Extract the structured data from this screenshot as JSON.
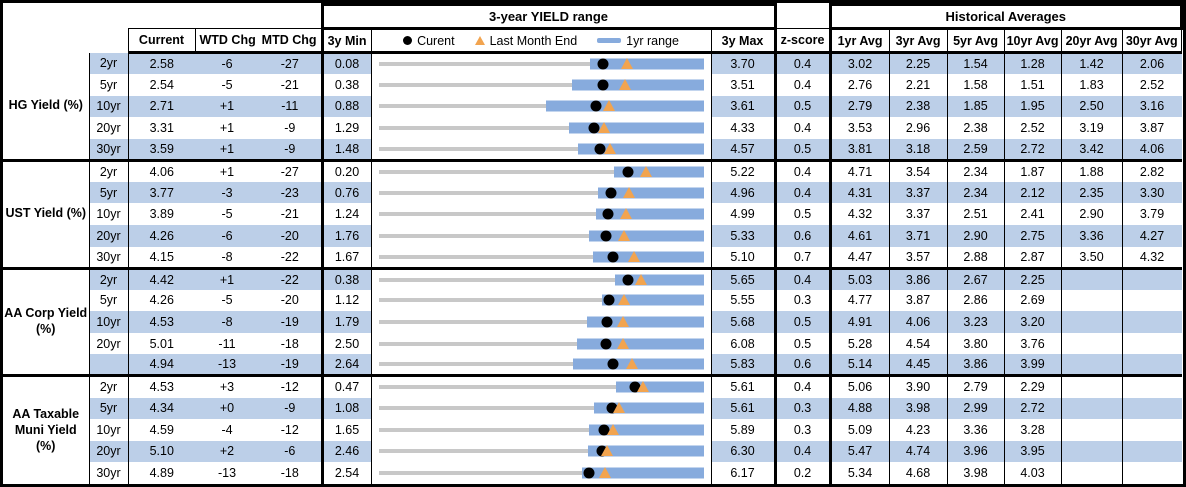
{
  "sections": {
    "yield_range": "3-year YIELD range",
    "historical": "Historical Averages"
  },
  "columns": {
    "current": "Current",
    "wtd": "WTD Chg",
    "mtd": "MTD Chg",
    "min": "3y Min",
    "max": "3y Max",
    "z": "z-score",
    "avgs": [
      "1yr Avg",
      "3yr Avg",
      "5yr Avg",
      "10yr Avg",
      "20yr Avg",
      "30yr Avg"
    ]
  },
  "legend": {
    "current": "Curent",
    "last_month_end": "Last Month End",
    "range": "1yr range"
  },
  "colors": {
    "band": "#BCCFE8",
    "bar": "#87ABDD",
    "triangle": "#F2A44F",
    "track": "#C8C8C8",
    "marker": "#000000"
  },
  "groups": [
    {
      "label": "HG Yield (%)",
      "rows": [
        {
          "tenor": "2yr",
          "current": "2.58",
          "wtd": "-6",
          "mtd": "-27",
          "min": "0.08",
          "max": "3.70",
          "z": "0.4",
          "avgs": [
            "3.02",
            "2.25",
            "1.54",
            "1.28",
            "1.42",
            "2.06"
          ]
        },
        {
          "tenor": "5yr",
          "current": "2.54",
          "wtd": "-5",
          "mtd": "-21",
          "min": "0.38",
          "max": "3.51",
          "z": "0.4",
          "avgs": [
            "2.76",
            "2.21",
            "1.58",
            "1.51",
            "1.83",
            "2.52"
          ]
        },
        {
          "tenor": "10yr",
          "current": "2.71",
          "wtd": "+1",
          "mtd": "-11",
          "min": "0.88",
          "max": "3.61",
          "z": "0.5",
          "avgs": [
            "2.79",
            "2.38",
            "1.85",
            "1.95",
            "2.50",
            "3.16"
          ]
        },
        {
          "tenor": "20yr",
          "current": "3.31",
          "wtd": "+1",
          "mtd": "-9",
          "min": "1.29",
          "max": "4.33",
          "z": "0.4",
          "avgs": [
            "3.53",
            "2.96",
            "2.38",
            "2.52",
            "3.19",
            "3.87"
          ]
        },
        {
          "tenor": "30yr",
          "current": "3.59",
          "wtd": "+1",
          "mtd": "-9",
          "min": "1.48",
          "max": "4.57",
          "z": "0.5",
          "avgs": [
            "3.81",
            "3.18",
            "2.59",
            "2.72",
            "3.42",
            "4.06"
          ]
        }
      ]
    },
    {
      "label": "UST Yield (%)",
      "rows": [
        {
          "tenor": "2yr",
          "current": "4.06",
          "wtd": "+1",
          "mtd": "-27",
          "min": "0.20",
          "max": "5.22",
          "z": "0.4",
          "avgs": [
            "4.71",
            "3.54",
            "2.34",
            "1.87",
            "1.88",
            "2.82"
          ]
        },
        {
          "tenor": "5yr",
          "current": "3.77",
          "wtd": "-3",
          "mtd": "-23",
          "min": "0.76",
          "max": "4.96",
          "z": "0.4",
          "avgs": [
            "4.31",
            "3.37",
            "2.34",
            "2.12",
            "2.35",
            "3.30"
          ]
        },
        {
          "tenor": "10yr",
          "current": "3.89",
          "wtd": "-5",
          "mtd": "-21",
          "min": "1.24",
          "max": "4.99",
          "z": "0.5",
          "avgs": [
            "4.32",
            "3.37",
            "2.51",
            "2.41",
            "2.90",
            "3.79"
          ]
        },
        {
          "tenor": "20yr",
          "current": "4.26",
          "wtd": "-6",
          "mtd": "-20",
          "min": "1.76",
          "max": "5.33",
          "z": "0.6",
          "avgs": [
            "4.61",
            "3.71",
            "2.90",
            "2.75",
            "3.36",
            "4.27"
          ]
        },
        {
          "tenor": "30yr",
          "current": "4.15",
          "wtd": "-8",
          "mtd": "-22",
          "min": "1.67",
          "max": "5.10",
          "z": "0.7",
          "avgs": [
            "4.47",
            "3.57",
            "2.88",
            "2.87",
            "3.50",
            "4.32"
          ]
        }
      ]
    },
    {
      "label": "AA Corp Yield\n(%)",
      "rows": [
        {
          "tenor": "2yr",
          "current": "4.42",
          "wtd": "+1",
          "mtd": "-22",
          "min": "0.38",
          "max": "5.65",
          "z": "0.4",
          "avgs": [
            "5.03",
            "3.86",
            "2.67",
            "2.25",
            "",
            ""
          ]
        },
        {
          "tenor": "5yr",
          "current": "4.26",
          "wtd": "-5",
          "mtd": "-20",
          "min": "1.12",
          "max": "5.55",
          "z": "0.3",
          "avgs": [
            "4.77",
            "3.87",
            "2.86",
            "2.69",
            "",
            ""
          ]
        },
        {
          "tenor": "10yr",
          "current": "4.53",
          "wtd": "-8",
          "mtd": "-19",
          "min": "1.79",
          "max": "5.68",
          "z": "0.5",
          "avgs": [
            "4.91",
            "4.06",
            "3.23",
            "3.20",
            "",
            ""
          ]
        },
        {
          "tenor": "20yr",
          "current": "5.01",
          "wtd": "-11",
          "mtd": "-18",
          "min": "2.50",
          "max": "6.08",
          "z": "0.5",
          "avgs": [
            "5.28",
            "4.54",
            "3.80",
            "3.76",
            "",
            ""
          ]
        },
        {
          "tenor": "",
          "current": "4.94",
          "wtd": "-13",
          "mtd": "-19",
          "min": "2.64",
          "max": "5.83",
          "z": "0.6",
          "avgs": [
            "5.14",
            "4.45",
            "3.86",
            "3.99",
            "",
            ""
          ]
        }
      ]
    },
    {
      "label": "AA Taxable\nMuni Yield\n(%)",
      "rows": [
        {
          "tenor": "2yr",
          "current": "4.53",
          "wtd": "+3",
          "mtd": "-12",
          "min": "0.47",
          "max": "5.61",
          "z": "0.4",
          "avgs": [
            "5.06",
            "3.90",
            "2.79",
            "2.29",
            "",
            ""
          ]
        },
        {
          "tenor": "5yr",
          "current": "4.34",
          "wtd": "+0",
          "mtd": "-9",
          "min": "1.08",
          "max": "5.61",
          "z": "0.3",
          "avgs": [
            "4.88",
            "3.98",
            "2.99",
            "2.72",
            "",
            ""
          ]
        },
        {
          "tenor": "10yr",
          "current": "4.59",
          "wtd": "-4",
          "mtd": "-12",
          "min": "1.65",
          "max": "5.89",
          "z": "0.3",
          "avgs": [
            "5.09",
            "4.23",
            "3.36",
            "3.28",
            "",
            ""
          ]
        },
        {
          "tenor": "20yr",
          "current": "5.10",
          "wtd": "+2",
          "mtd": "-6",
          "min": "2.46",
          "max": "6.30",
          "z": "0.4",
          "avgs": [
            "5.47",
            "4.74",
            "3.96",
            "3.95",
            "",
            ""
          ]
        },
        {
          "tenor": "30yr",
          "current": "4.89",
          "wtd": "-13",
          "mtd": "-18",
          "min": "2.54",
          "max": "6.17",
          "z": "0.2",
          "avgs": [
            "5.34",
            "4.68",
            "3.98",
            "4.03",
            "",
            ""
          ]
        }
      ]
    }
  ],
  "chart_data": {
    "type": "bar",
    "subtype": "horizontal range (bullet) chart, one per table row",
    "title": "3-year YIELD range",
    "legend": [
      "Curent",
      "Last Month End",
      "1yr range"
    ],
    "note": "range_3y from 3y Min/3y Max columns; current = black dot; last_month_end = orange triangle (current minus MTD Chg bp); range_1y = blue bar (high end coincides with 3y Max), low end estimated from pixels",
    "rows": [
      {
        "series": "HG Yield (%)",
        "tenor": "2yr",
        "range_3y": [
          0.08,
          3.7
        ],
        "range_1y": [
          2.43,
          3.7
        ],
        "current": 2.58,
        "last_month_end": 2.85
      },
      {
        "series": "HG Yield (%)",
        "tenor": "5yr",
        "range_3y": [
          0.38,
          3.51
        ],
        "range_1y": [
          2.24,
          3.51
        ],
        "current": 2.54,
        "last_month_end": 2.75
      },
      {
        "series": "HG Yield (%)",
        "tenor": "10yr",
        "range_3y": [
          0.88,
          3.61
        ],
        "range_1y": [
          2.29,
          3.61
        ],
        "current": 2.71,
        "last_month_end": 2.82
      },
      {
        "series": "HG Yield (%)",
        "tenor": "20yr",
        "range_3y": [
          1.29,
          4.33
        ],
        "range_1y": [
          3.07,
          4.33
        ],
        "current": 3.31,
        "last_month_end": 3.4
      },
      {
        "series": "HG Yield (%)",
        "tenor": "30yr",
        "range_3y": [
          1.48,
          4.57
        ],
        "range_1y": [
          3.38,
          4.57
        ],
        "current": 3.59,
        "last_month_end": 3.68
      },
      {
        "series": "UST Yield (%)",
        "tenor": "2yr",
        "range_3y": [
          0.2,
          5.22
        ],
        "range_1y": [
          3.83,
          5.22
        ],
        "current": 4.06,
        "last_month_end": 4.33
      },
      {
        "series": "UST Yield (%)",
        "tenor": "5yr",
        "range_3y": [
          0.76,
          4.96
        ],
        "range_1y": [
          3.59,
          4.96
        ],
        "current": 3.77,
        "last_month_end": 4.0
      },
      {
        "series": "UST Yield (%)",
        "tenor": "10yr",
        "range_3y": [
          1.24,
          4.99
        ],
        "range_1y": [
          3.75,
          4.99
        ],
        "current": 3.89,
        "last_month_end": 4.1
      },
      {
        "series": "UST Yield (%)",
        "tenor": "20yr",
        "range_3y": [
          1.76,
          5.33
        ],
        "range_1y": [
          4.07,
          5.33
        ],
        "current": 4.26,
        "last_month_end": 4.46
      },
      {
        "series": "UST Yield (%)",
        "tenor": "30yr",
        "range_3y": [
          1.67,
          5.1
        ],
        "range_1y": [
          3.93,
          5.1
        ],
        "current": 4.15,
        "last_month_end": 4.37
      },
      {
        "series": "AA Corp Yield (%)",
        "tenor": "2yr",
        "range_3y": [
          0.38,
          5.65
        ],
        "range_1y": [
          4.22,
          5.65
        ],
        "current": 4.42,
        "last_month_end": 4.64
      },
      {
        "series": "AA Corp Yield (%)",
        "tenor": "5yr",
        "range_3y": [
          1.12,
          5.55
        ],
        "range_1y": [
          4.17,
          5.55
        ],
        "current": 4.26,
        "last_month_end": 4.46
      },
      {
        "series": "AA Corp Yield (%)",
        "tenor": "10yr",
        "range_3y": [
          1.79,
          5.68
        ],
        "range_1y": [
          4.29,
          5.68
        ],
        "current": 4.53,
        "last_month_end": 4.72
      },
      {
        "series": "AA Corp Yield (%)",
        "tenor": "20yr",
        "range_3y": [
          2.5,
          6.08
        ],
        "range_1y": [
          4.69,
          6.08
        ],
        "current": 5.01,
        "last_month_end": 5.19
      },
      {
        "series": "AA Corp Yield (%)",
        "tenor": "",
        "range_3y": [
          2.64,
          5.83
        ],
        "range_1y": [
          4.55,
          5.83
        ],
        "current": 4.94,
        "last_month_end": 5.13
      },
      {
        "series": "AA Taxable Muni Yield (%)",
        "tenor": "2yr",
        "range_3y": [
          0.47,
          5.61
        ],
        "range_1y": [
          4.22,
          5.61
        ],
        "current": 4.53,
        "last_month_end": 4.65
      },
      {
        "series": "AA Taxable Muni Yield (%)",
        "tenor": "5yr",
        "range_3y": [
          1.08,
          5.61
        ],
        "range_1y": [
          4.09,
          5.61
        ],
        "current": 4.34,
        "last_month_end": 4.43
      },
      {
        "series": "AA Taxable Muni Yield (%)",
        "tenor": "10yr",
        "range_3y": [
          1.65,
          5.89
        ],
        "range_1y": [
          4.4,
          5.89
        ],
        "current": 4.59,
        "last_month_end": 4.71
      },
      {
        "series": "AA Taxable Muni Yield (%)",
        "tenor": "20yr",
        "range_3y": [
          2.46,
          6.3
        ],
        "range_1y": [
          4.93,
          6.3
        ],
        "current": 5.1,
        "last_month_end": 5.16
      },
      {
        "series": "AA Taxable Muni Yield (%)",
        "tenor": "30yr",
        "range_3y": [
          2.54,
          6.17
        ],
        "range_1y": [
          4.81,
          6.17
        ],
        "current": 4.89,
        "last_month_end": 5.07
      }
    ]
  }
}
